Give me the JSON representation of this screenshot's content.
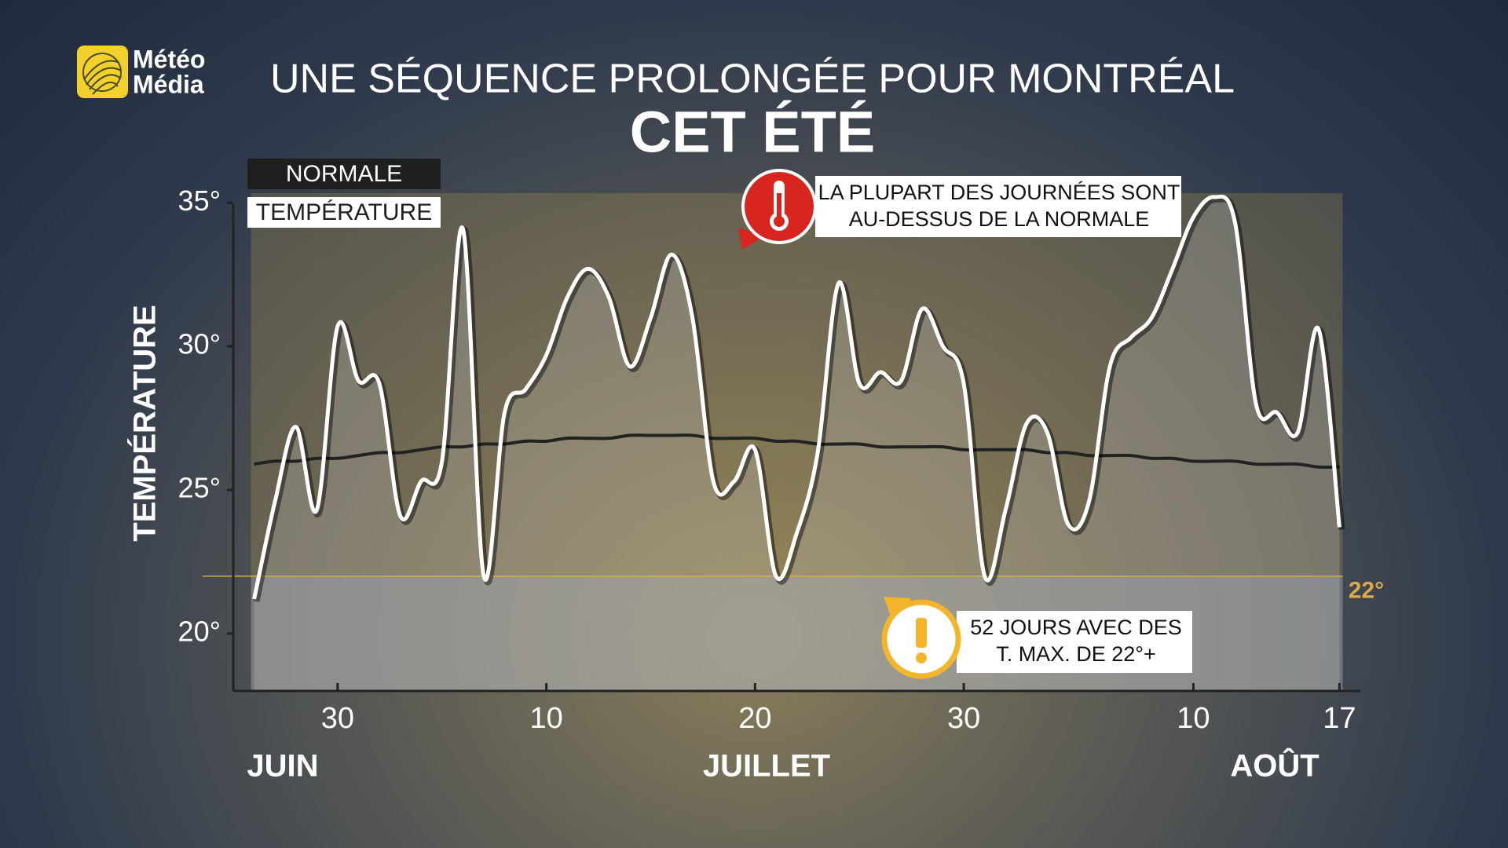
{
  "brand": {
    "lines": [
      "Météo",
      "Média"
    ]
  },
  "chart_data": {
    "type": "line",
    "title": "UNE SÉQUENCE PROLONGÉE POUR MONTRÉAL",
    "subtitle": "CET ÉTÉ",
    "y_label": "TEMPÉRATURE",
    "x": [
      26,
      27,
      28,
      29,
      30,
      31,
      32,
      33,
      34,
      35,
      36,
      37,
      38,
      39,
      40,
      41,
      42,
      43,
      44,
      45,
      46,
      47,
      48,
      49,
      50,
      51,
      52,
      53,
      54,
      55,
      56,
      57,
      58,
      59,
      60,
      61,
      62,
      63,
      64,
      65,
      66,
      67,
      68,
      69,
      70,
      71,
      72,
      73,
      74,
      75,
      76,
      77,
      78
    ],
    "x_groups": [
      "JUIN",
      "JUILLET",
      "AOÛT"
    ],
    "series": [
      {
        "name": "NORMALE",
        "color": "#222222",
        "values": [
          25.9,
          26.0,
          26.0,
          26.1,
          26.1,
          26.2,
          26.3,
          26.3,
          26.4,
          26.5,
          26.5,
          26.6,
          26.6,
          26.7,
          26.7,
          26.8,
          26.8,
          26.8,
          26.9,
          26.9,
          26.9,
          26.9,
          26.8,
          26.8,
          26.8,
          26.7,
          26.7,
          26.6,
          26.6,
          26.6,
          26.5,
          26.5,
          26.5,
          26.5,
          26.4,
          26.4,
          26.4,
          26.4,
          26.3,
          26.3,
          26.2,
          26.2,
          26.2,
          26.1,
          26.1,
          26.0,
          26.0,
          26.0,
          25.9,
          25.9,
          25.9,
          25.8,
          25.8
        ]
      },
      {
        "name": "TEMPÉRATURE",
        "color": "#ffffff",
        "values": [
          21.2,
          24.6,
          27.2,
          24.3,
          30.7,
          28.8,
          28.7,
          24.1,
          25.3,
          26.0,
          34.1,
          22.0,
          27.7,
          28.5,
          29.7,
          31.7,
          32.7,
          31.7,
          29.3,
          31.0,
          33.2,
          31.0,
          25.3,
          25.3,
          26.4,
          22.0,
          23.5,
          26.3,
          32.2,
          28.7,
          29.1,
          28.8,
          31.3,
          30.0,
          28.7,
          22.0,
          24.3,
          27.3,
          27.0,
          23.8,
          24.6,
          29.3,
          30.3,
          31.0,
          32.7,
          34.5,
          35.2,
          34.3,
          28.0,
          27.7,
          27.0,
          30.6,
          23.7
        ]
      }
    ],
    "xlim": [
      25,
      79
    ],
    "xticks": [
      30,
      {
        "value": 40,
        "label": "10"
      },
      {
        "value": 50,
        "label": "20"
      },
      {
        "value": 60,
        "label": "30"
      },
      {
        "value": 71,
        "label": "10"
      },
      {
        "value": 78,
        "label": "17"
      }
    ],
    "ylim": [
      18,
      35.5
    ],
    "yticks": [
      {
        "value": 20,
        "label": "20°"
      },
      {
        "value": 25,
        "label": "25°"
      },
      {
        "value": 30,
        "label": "30°"
      },
      {
        "value": 35,
        "label": "35°"
      }
    ],
    "grid": false,
    "threshold": {
      "value": 22,
      "label": "22°",
      "color": "#d9a94a"
    },
    "annotations": [
      {
        "lines": [
          "LA PLUPART DES JOURNÉES SONT",
          "AU-DESSUS DE LA NORMALE"
        ]
      },
      {
        "lines": [
          "52 JOURS AVEC DES",
          "T. MAX. DE 22°+"
        ]
      }
    ]
  }
}
